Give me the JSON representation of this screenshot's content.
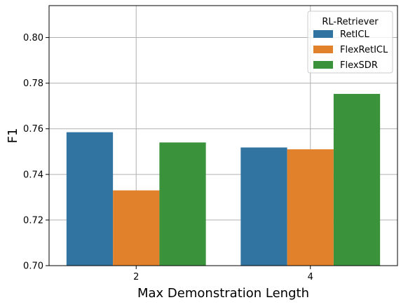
{
  "chart_data": {
    "type": "bar",
    "title": "",
    "xlabel": "Max Demonstration Length",
    "ylabel": "F1",
    "categories": [
      "2",
      "4"
    ],
    "ylim": [
      0.7,
      0.814
    ],
    "yticks": [
      0.7,
      0.72,
      0.74,
      0.76,
      0.78,
      0.8
    ],
    "ytick_labels": [
      "0.70",
      "0.72",
      "0.74",
      "0.76",
      "0.78",
      "0.80"
    ],
    "grid": true,
    "legend": {
      "title": "RL-Retriever",
      "position": "top-right"
    },
    "series": [
      {
        "name": "RetICL",
        "color": "#3274a1",
        "values": [
          0.7585,
          0.7518
        ]
      },
      {
        "name": "FlexRetICL",
        "color": "#e1812c",
        "values": [
          0.733,
          0.751
        ]
      },
      {
        "name": "FlexSDR",
        "color": "#3a923a",
        "values": [
          0.754,
          0.7753
        ]
      }
    ]
  }
}
